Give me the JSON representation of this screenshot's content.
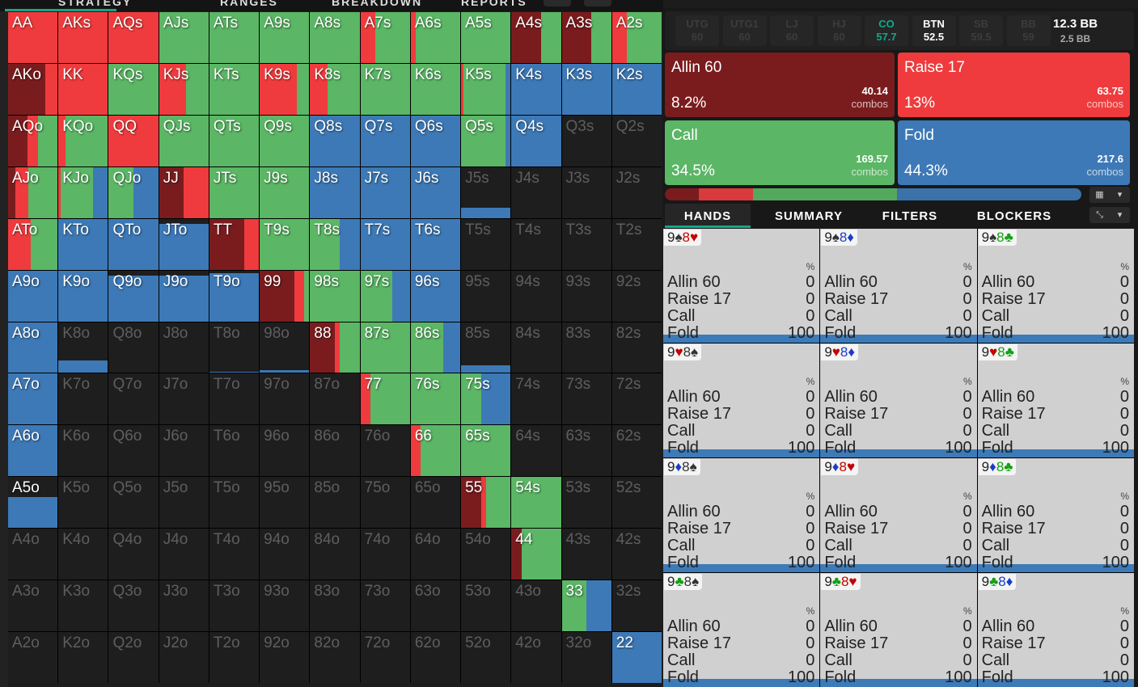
{
  "colors": {
    "allin": "#7a1c1e",
    "raise": "#ef3b3d",
    "call": "#5bb665",
    "fold": "#3d79b6"
  },
  "top_tabs": [
    "STRATEGY",
    "RANGES",
    "BREAKDOWN",
    "REPORTS"
  ],
  "grid": [
    [
      [
        "AA",
        1,
        0,
        1,
        0,
        0
      ],
      [
        "AKs",
        1,
        0,
        1,
        0,
        0
      ],
      [
        "AQs",
        1,
        0,
        1,
        0,
        0
      ],
      [
        "AJs",
        1,
        0,
        0,
        1,
        0
      ],
      [
        "ATs",
        1,
        0,
        0,
        1,
        0
      ],
      [
        "A9s",
        1,
        0,
        0,
        1,
        0
      ],
      [
        "A8s",
        1,
        0,
        0,
        1,
        0
      ],
      [
        "A7s",
        1,
        0,
        0.3,
        0.7,
        0
      ],
      [
        "A6s",
        1,
        0,
        0.1,
        0.9,
        0
      ],
      [
        "A5s",
        1,
        0,
        0,
        1,
        0
      ],
      [
        "A4s",
        1,
        0.6,
        0,
        0.4,
        0
      ],
      [
        "A3s",
        1,
        0.6,
        0,
        0.4,
        0
      ],
      [
        "A2s",
        1,
        0,
        0.3,
        0.7,
        0
      ]
    ],
    [
      [
        "AKo",
        1,
        0.75,
        0.25,
        0,
        0
      ],
      [
        "KK",
        1,
        0,
        1,
        0,
        0
      ],
      [
        "KQs",
        1,
        0,
        0,
        1,
        0
      ],
      [
        "KJs",
        1,
        0,
        0.55,
        0.45,
        0
      ],
      [
        "KTs",
        1,
        0,
        0,
        1,
        0
      ],
      [
        "K9s",
        1,
        0,
        0.75,
        0.25,
        0
      ],
      [
        "K8s",
        1,
        0,
        0.35,
        0.65,
        0
      ],
      [
        "K7s",
        1,
        0,
        0,
        1,
        0
      ],
      [
        "K6s",
        1,
        0,
        0,
        1,
        0
      ],
      [
        "K5s",
        1,
        0,
        0.05,
        0.85,
        0.1
      ],
      [
        "K4s",
        1,
        0,
        0,
        0,
        1
      ],
      [
        "K3s",
        1,
        0,
        0,
        0,
        1
      ],
      [
        "K2s",
        1,
        0,
        0,
        0,
        1
      ]
    ],
    [
      [
        "AQo",
        1,
        0.4,
        0.2,
        0.4,
        0
      ],
      [
        "KQo",
        1,
        0,
        0.15,
        0.85,
        0
      ],
      [
        "QQ",
        1,
        0,
        1,
        0,
        0
      ],
      [
        "QJs",
        1,
        0,
        0,
        1,
        0
      ],
      [
        "QTs",
        1,
        0,
        0,
        1,
        0
      ],
      [
        "Q9s",
        1,
        0,
        0,
        1,
        0
      ],
      [
        "Q8s",
        1,
        0,
        0,
        0,
        1
      ],
      [
        "Q7s",
        1,
        0,
        0,
        0,
        1
      ],
      [
        "Q6s",
        1,
        0,
        0,
        0,
        1
      ],
      [
        "Q5s",
        1,
        0,
        0,
        0.9,
        0.1
      ],
      [
        "Q4s",
        1,
        0,
        0,
        0,
        1
      ],
      [
        "Q3s",
        0,
        0,
        0,
        0,
        0
      ],
      [
        "Q2s",
        0,
        0,
        0,
        0,
        0
      ]
    ],
    [
      [
        "AJo",
        1,
        0.15,
        0.25,
        0.6,
        0
      ],
      [
        "KJo",
        1,
        0,
        0.05,
        0.65,
        0.3
      ],
      [
        "QJo",
        1,
        0,
        0,
        0.5,
        0.5
      ],
      [
        "JJ",
        1,
        0.5,
        0.5,
        0,
        0
      ],
      [
        "JTs",
        1,
        0,
        0,
        1,
        0
      ],
      [
        "J9s",
        1,
        0,
        0,
        1,
        0
      ],
      [
        "J8s",
        1,
        0,
        0,
        0,
        1
      ],
      [
        "J7s",
        1,
        0,
        0,
        0,
        1
      ],
      [
        "J6s",
        1,
        0,
        0,
        0,
        1
      ],
      [
        "J5s",
        0.2,
        0,
        0,
        0,
        1
      ],
      [
        "J4s",
        0,
        0,
        0,
        0,
        0
      ],
      [
        "J3s",
        0,
        0,
        0,
        0,
        0
      ],
      [
        "J2s",
        0,
        0,
        0,
        0,
        0
      ]
    ],
    [
      [
        "ATo",
        1,
        0,
        0.45,
        0.55,
        0
      ],
      [
        "KTo",
        1,
        0,
        0,
        0,
        1
      ],
      [
        "QTo",
        1,
        0,
        0,
        0,
        1
      ],
      [
        "JTo",
        0.9,
        0,
        0,
        0,
        1
      ],
      [
        "TT",
        1,
        0.7,
        0.3,
        0,
        0
      ],
      [
        "T9s",
        1,
        0,
        0,
        1,
        0
      ],
      [
        "T8s",
        1,
        0,
        0,
        0.6,
        0.4
      ],
      [
        "T7s",
        1,
        0,
        0,
        0,
        1
      ],
      [
        "T6s",
        1,
        0,
        0,
        0,
        1
      ],
      [
        "T5s",
        0,
        0,
        0,
        0,
        0
      ],
      [
        "T4s",
        0,
        0,
        0,
        0,
        0
      ],
      [
        "T3s",
        0,
        0,
        0,
        0,
        0
      ],
      [
        "T2s",
        0,
        0,
        0,
        0,
        0
      ]
    ],
    [
      [
        "A9o",
        1,
        0,
        0,
        0,
        1
      ],
      [
        "K9o",
        1,
        0,
        0,
        0,
        1
      ],
      [
        "Q9o",
        0.9,
        0,
        0,
        0,
        1
      ],
      [
        "J9o",
        0.9,
        0,
        0,
        0,
        1
      ],
      [
        "T9o",
        0.95,
        0,
        0,
        0,
        1
      ],
      [
        "99",
        1,
        0.7,
        0.2,
        0.1,
        0
      ],
      [
        "98s",
        1,
        0,
        0,
        1,
        0
      ],
      [
        "97s",
        1,
        0,
        0,
        0.65,
        0.35
      ],
      [
        "96s",
        1,
        0,
        0,
        0,
        1
      ],
      [
        "95s",
        0,
        0,
        0,
        0,
        0
      ],
      [
        "94s",
        0,
        0,
        0,
        0,
        0
      ],
      [
        "93s",
        0,
        0,
        0,
        0,
        0
      ],
      [
        "92s",
        0,
        0,
        0,
        0,
        0
      ]
    ],
    [
      [
        "A8o",
        1,
        0,
        0,
        0,
        1
      ],
      [
        "K8o",
        0.25,
        0,
        0,
        0,
        1
      ],
      [
        "Q8o",
        0,
        0,
        0,
        0,
        0
      ],
      [
        "J8o",
        0,
        0,
        0,
        0,
        0
      ],
      [
        "T8o",
        0.03,
        0,
        0,
        0,
        1
      ],
      [
        "98o",
        0.06,
        0,
        0,
        0,
        1
      ],
      [
        "88",
        1,
        0.5,
        0.1,
        0.4,
        0
      ],
      [
        "87s",
        1,
        0,
        0,
        1,
        0
      ],
      [
        "86s",
        1,
        0,
        0,
        0.65,
        0.35
      ],
      [
        "85s",
        0.15,
        0,
        0,
        0,
        1
      ],
      [
        "84s",
        0,
        0,
        0,
        0,
        0
      ],
      [
        "83s",
        0,
        0,
        0,
        0,
        0
      ],
      [
        "82s",
        0,
        0,
        0,
        0,
        0
      ]
    ],
    [
      [
        "A7o",
        1,
        0,
        0,
        0,
        1
      ],
      [
        "K7o",
        0,
        0,
        0,
        0,
        0
      ],
      [
        "Q7o",
        0,
        0,
        0,
        0,
        0
      ],
      [
        "J7o",
        0,
        0,
        0,
        0,
        0
      ],
      [
        "T7o",
        0,
        0,
        0,
        0,
        0
      ],
      [
        "97o",
        0,
        0,
        0,
        0,
        0
      ],
      [
        "87o",
        0,
        0,
        0,
        0,
        0
      ],
      [
        "77",
        1,
        0,
        0.2,
        0.8,
        0
      ],
      [
        "76s",
        1,
        0,
        0,
        1,
        0
      ],
      [
        "75s",
        1,
        0,
        0,
        0.4,
        0.6
      ],
      [
        "74s",
        0,
        0,
        0,
        0,
        0
      ],
      [
        "73s",
        0,
        0,
        0,
        0,
        0
      ],
      [
        "72s",
        0,
        0,
        0,
        0,
        0
      ]
    ],
    [
      [
        "A6o",
        1,
        0,
        0,
        0,
        1
      ],
      [
        "K6o",
        0,
        0,
        0,
        0,
        0
      ],
      [
        "Q6o",
        0,
        0,
        0,
        0,
        0
      ],
      [
        "J6o",
        0,
        0,
        0,
        0,
        0
      ],
      [
        "T6o",
        0,
        0,
        0,
        0,
        0
      ],
      [
        "96o",
        0,
        0,
        0,
        0,
        0
      ],
      [
        "86o",
        0,
        0,
        0,
        0,
        0
      ],
      [
        "76o",
        0,
        0,
        0,
        0,
        0
      ],
      [
        "66",
        1,
        0,
        0.2,
        0.8,
        0
      ],
      [
        "65s",
        1,
        0,
        0,
        1,
        0
      ],
      [
        "64s",
        0,
        0,
        0,
        0,
        0
      ],
      [
        "63s",
        0,
        0,
        0,
        0,
        0
      ],
      [
        "62s",
        0,
        0,
        0,
        0,
        0
      ]
    ],
    [
      [
        "A5o",
        0.6,
        0,
        0,
        0,
        1
      ],
      [
        "K5o",
        0,
        0,
        0,
        0,
        0
      ],
      [
        "Q5o",
        0,
        0,
        0,
        0,
        0
      ],
      [
        "J5o",
        0,
        0,
        0,
        0,
        0
      ],
      [
        "T5o",
        0,
        0,
        0,
        0,
        0
      ],
      [
        "95o",
        0,
        0,
        0,
        0,
        0
      ],
      [
        "85o",
        0,
        0,
        0,
        0,
        0
      ],
      [
        "75o",
        0,
        0,
        0,
        0,
        0
      ],
      [
        "65o",
        0,
        0,
        0,
        0,
        0
      ],
      [
        "55",
        1,
        0.4,
        0.1,
        0.5,
        0
      ],
      [
        "54s",
        1,
        0,
        0,
        1,
        0
      ],
      [
        "53s",
        0,
        0,
        0,
        0,
        0
      ],
      [
        "52s",
        0,
        0,
        0,
        0,
        0
      ]
    ],
    [
      [
        "A4o",
        0,
        0,
        0,
        0,
        0
      ],
      [
        "K4o",
        0,
        0,
        0,
        0,
        0
      ],
      [
        "Q4o",
        0,
        0,
        0,
        0,
        0
      ],
      [
        "J4o",
        0,
        0,
        0,
        0,
        0
      ],
      [
        "T4o",
        0,
        0,
        0,
        0,
        0
      ],
      [
        "94o",
        0,
        0,
        0,
        0,
        0
      ],
      [
        "84o",
        0,
        0,
        0,
        0,
        0
      ],
      [
        "74o",
        0,
        0,
        0,
        0,
        0
      ],
      [
        "64o",
        0,
        0,
        0,
        0,
        0
      ],
      [
        "54o",
        0,
        0,
        0,
        0,
        0
      ],
      [
        "44",
        1,
        0.2,
        0,
        0.8,
        0
      ],
      [
        "43s",
        0,
        0,
        0,
        0,
        0
      ],
      [
        "42s",
        0,
        0,
        0,
        0,
        0
      ]
    ],
    [
      [
        "A3o",
        0,
        0,
        0,
        0,
        0
      ],
      [
        "K3o",
        0,
        0,
        0,
        0,
        0
      ],
      [
        "Q3o",
        0,
        0,
        0,
        0,
        0
      ],
      [
        "J3o",
        0,
        0,
        0,
        0,
        0
      ],
      [
        "T3o",
        0,
        0,
        0,
        0,
        0
      ],
      [
        "93o",
        0,
        0,
        0,
        0,
        0
      ],
      [
        "83o",
        0,
        0,
        0,
        0,
        0
      ],
      [
        "73o",
        0,
        0,
        0,
        0,
        0
      ],
      [
        "63o",
        0,
        0,
        0,
        0,
        0
      ],
      [
        "53o",
        0,
        0,
        0,
        0,
        0
      ],
      [
        "43o",
        0,
        0,
        0,
        0,
        0
      ],
      [
        "33",
        1,
        0,
        0,
        0.5,
        0.5
      ],
      [
        "32s",
        0,
        0,
        0,
        0,
        0
      ]
    ],
    [
      [
        "A2o",
        0,
        0,
        0,
        0,
        0
      ],
      [
        "K2o",
        0,
        0,
        0,
        0,
        0
      ],
      [
        "Q2o",
        0,
        0,
        0,
        0,
        0
      ],
      [
        "J2o",
        0,
        0,
        0,
        0,
        0
      ],
      [
        "T2o",
        0,
        0,
        0,
        0,
        0
      ],
      [
        "92o",
        0,
        0,
        0,
        0,
        0
      ],
      [
        "82o",
        0,
        0,
        0,
        0,
        0
      ],
      [
        "72o",
        0,
        0,
        0,
        0,
        0
      ],
      [
        "62o",
        0,
        0,
        0,
        0,
        0
      ],
      [
        "52o",
        0,
        0,
        0,
        0,
        0
      ],
      [
        "42o",
        0,
        0,
        0,
        0,
        0
      ],
      [
        "32o",
        0,
        0,
        0,
        0,
        0
      ],
      [
        "22",
        1,
        0,
        0,
        0,
        1
      ]
    ]
  ],
  "positions": [
    {
      "name": "UTG",
      "stack": "60"
    },
    {
      "name": "UTG1",
      "stack": "60"
    },
    {
      "name": "LJ",
      "stack": "60"
    },
    {
      "name": "HJ",
      "stack": "60"
    },
    {
      "name": "CO",
      "stack": "57.7"
    },
    {
      "name": "BTN",
      "stack": "52.5"
    },
    {
      "name": "SB",
      "stack": "59.5"
    },
    {
      "name": "BB",
      "stack": "59"
    }
  ],
  "stack": {
    "eff": "12.3 BB",
    "pot": "2.5 BB"
  },
  "actions": [
    {
      "name": "Allin 60",
      "pct": "8.2%",
      "combos": "40.14",
      "combos_label": "combos",
      "freq": 8.2
    },
    {
      "name": "Raise 17",
      "pct": "13%",
      "combos": "63.75",
      "combos_label": "combos",
      "freq": 13
    },
    {
      "name": "Call",
      "pct": "34.5%",
      "combos": "169.57",
      "combos_label": "combos",
      "freq": 34.5
    },
    {
      "name": "Fold",
      "pct": "44.3%",
      "combos": "217.6",
      "combos_label": "combos",
      "freq": 44.3
    }
  ],
  "tabs": [
    "HANDS",
    "SUMMARY",
    "FILTERS",
    "BLOCKERS"
  ],
  "hands_header": "%",
  "hands": [
    {
      "r1": "9",
      "s1": "♠",
      "r2": "8",
      "s2": "♥"
    },
    {
      "r1": "9",
      "s1": "♠",
      "r2": "8",
      "s2": "♦"
    },
    {
      "r1": "9",
      "s1": "♠",
      "r2": "8",
      "s2": "♣"
    },
    {
      "r1": "9",
      "s1": "♥",
      "r2": "8",
      "s2": "♠"
    },
    {
      "r1": "9",
      "s1": "♥",
      "r2": "8",
      "s2": "♦"
    },
    {
      "r1": "9",
      "s1": "♥",
      "r2": "8",
      "s2": "♣"
    },
    {
      "r1": "9",
      "s1": "♦",
      "r2": "8",
      "s2": "♠"
    },
    {
      "r1": "9",
      "s1": "♦",
      "r2": "8",
      "s2": "♥"
    },
    {
      "r1": "9",
      "s1": "♦",
      "r2": "8",
      "s2": "♣"
    },
    {
      "r1": "9",
      "s1": "♣",
      "r2": "8",
      "s2": "♠"
    },
    {
      "r1": "9",
      "s1": "♣",
      "r2": "8",
      "s2": "♥"
    },
    {
      "r1": "9",
      "s1": "♣",
      "r2": "8",
      "s2": "♦"
    }
  ],
  "hand_strategy": [
    {
      "label": "Allin 60",
      "value": "0"
    },
    {
      "label": "Raise 17",
      "value": "0"
    },
    {
      "label": "Call",
      "value": "0"
    },
    {
      "label": "Fold",
      "value": "100"
    }
  ],
  "suit_colors": {
    "♠": "#333333",
    "♥": "#c40000",
    "♦": "#1c3cc8",
    "♣": "#12a012"
  }
}
